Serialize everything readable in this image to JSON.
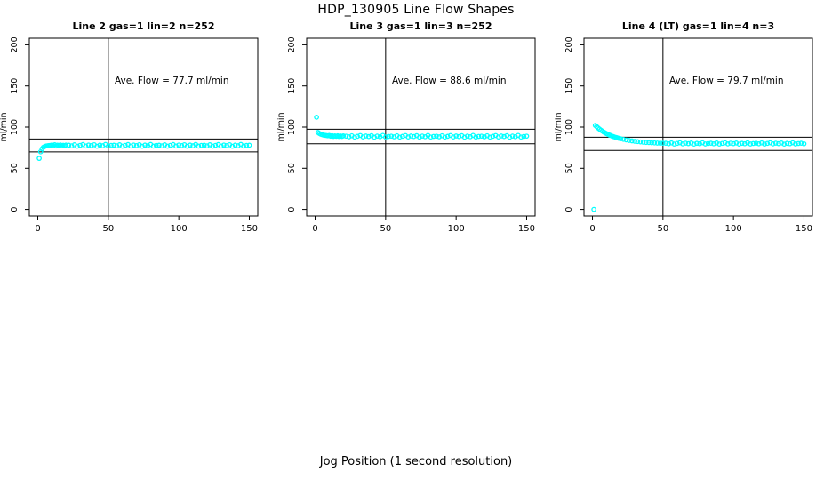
{
  "page_title": "HDP_130905  Line Flow Shapes",
  "x_axis_label": "Jog Position (1 second resolution)",
  "colors": {
    "points": "#00ffff",
    "axis": "#000000",
    "background": "#ffffff",
    "text": "#000000"
  },
  "chart_data": [
    {
      "type": "scatter",
      "title": "Line 2 gas=1 lin=2 n=252",
      "annotation": "Ave. Flow =  77.7  ml/min",
      "ave_flow_ml_min": 77.7,
      "ylabel": "ml/min",
      "xlim": [
        0,
        150
      ],
      "ylim": [
        0,
        200
      ],
      "xticks": [
        0,
        50,
        100,
        150
      ],
      "yticks": [
        0,
        50,
        100,
        150,
        200
      ],
      "vline_x": 50,
      "hlines": [
        85.5,
        69.9
      ],
      "marker": "open-circle",
      "points": [
        [
          1,
          62
        ],
        [
          2,
          70
        ],
        [
          3,
          73.5
        ],
        [
          4,
          75.5
        ],
        [
          5,
          76.5
        ],
        [
          6,
          77.1
        ],
        [
          7,
          77.4
        ],
        [
          8,
          77.6
        ],
        [
          9,
          77.7
        ],
        [
          10,
          78.2
        ],
        [
          11,
          77.3
        ],
        [
          12,
          78.5
        ],
        [
          13,
          77.0
        ],
        [
          14,
          78.0
        ],
        [
          15,
          77.4
        ],
        [
          16,
          78.3
        ],
        [
          17,
          77.1
        ],
        [
          18,
          77.9
        ],
        [
          19,
          77.5
        ],
        [
          20,
          78.1
        ],
        [
          22,
          78.0
        ],
        [
          24,
          77.2
        ],
        [
          26,
          78.5
        ],
        [
          28,
          76.8
        ],
        [
          30,
          77.8
        ],
        [
          32,
          78.8
        ],
        [
          34,
          77.0
        ],
        [
          36,
          78.2
        ],
        [
          38,
          77.5
        ],
        [
          40,
          78.6
        ],
        [
          42,
          76.7
        ],
        [
          44,
          78.1
        ],
        [
          46,
          77.3
        ],
        [
          48,
          78.9
        ],
        [
          50,
          76.9
        ],
        [
          52,
          77.7
        ],
        [
          54,
          78.0
        ],
        [
          56,
          77.2
        ],
        [
          58,
          78.5
        ],
        [
          60,
          76.8
        ],
        [
          62,
          77.8
        ],
        [
          64,
          78.8
        ],
        [
          66,
          77.0
        ],
        [
          68,
          78.2
        ],
        [
          70,
          77.5
        ],
        [
          72,
          78.6
        ],
        [
          74,
          76.7
        ],
        [
          76,
          78.1
        ],
        [
          78,
          77.3
        ],
        [
          80,
          78.9
        ],
        [
          82,
          76.9
        ],
        [
          84,
          77.7
        ],
        [
          86,
          78.0
        ],
        [
          88,
          77.2
        ],
        [
          90,
          78.5
        ],
        [
          92,
          76.8
        ],
        [
          94,
          77.8
        ],
        [
          96,
          78.8
        ],
        [
          98,
          77.0
        ],
        [
          100,
          78.2
        ],
        [
          102,
          77.5
        ],
        [
          104,
          78.6
        ],
        [
          106,
          76.7
        ],
        [
          108,
          78.1
        ],
        [
          110,
          77.3
        ],
        [
          112,
          78.9
        ],
        [
          114,
          76.9
        ],
        [
          116,
          77.7
        ],
        [
          118,
          78.0
        ],
        [
          120,
          77.2
        ],
        [
          122,
          78.5
        ],
        [
          124,
          76.8
        ],
        [
          126,
          77.8
        ],
        [
          128,
          78.8
        ],
        [
          130,
          77.0
        ],
        [
          132,
          78.2
        ],
        [
          134,
          77.5
        ],
        [
          136,
          78.6
        ],
        [
          138,
          76.7
        ],
        [
          140,
          78.1
        ],
        [
          142,
          77.3
        ],
        [
          144,
          78.9
        ],
        [
          146,
          76.9
        ],
        [
          148,
          77.7
        ],
        [
          150,
          78.0
        ]
      ]
    },
    {
      "type": "scatter",
      "title": "Line 3 gas=1 lin=3 n=252",
      "annotation": "Ave. Flow =  88.6  ml/min",
      "ave_flow_ml_min": 88.6,
      "ylabel": "ml/min",
      "xlim": [
        0,
        150
      ],
      "ylim": [
        0,
        200
      ],
      "xticks": [
        0,
        50,
        100,
        150
      ],
      "yticks": [
        0,
        50,
        100,
        150,
        200
      ],
      "vline_x": 50,
      "hlines": [
        97.5,
        79.7
      ],
      "marker": "open-circle",
      "points": [
        [
          1,
          112
        ],
        [
          2,
          93.5
        ],
        [
          3,
          92.3
        ],
        [
          4,
          91.4
        ],
        [
          5,
          90.8
        ],
        [
          6,
          90.3
        ],
        [
          7,
          90.0
        ],
        [
          8,
          89.7
        ],
        [
          9,
          89.5
        ],
        [
          10,
          89.9
        ],
        [
          11,
          88.9
        ],
        [
          12,
          89.6
        ],
        [
          13,
          88.7
        ],
        [
          14,
          89.4
        ],
        [
          15,
          88.8
        ],
        [
          16,
          89.5
        ],
        [
          17,
          88.6
        ],
        [
          18,
          89.2
        ],
        [
          19,
          88.7
        ],
        [
          20,
          89.3
        ],
        [
          22,
          89.0
        ],
        [
          24,
          88.2
        ],
        [
          26,
          89.5
        ],
        [
          28,
          87.8
        ],
        [
          30,
          88.8
        ],
        [
          32,
          89.8
        ],
        [
          34,
          88.0
        ],
        [
          36,
          89.2
        ],
        [
          38,
          88.5
        ],
        [
          40,
          89.6
        ],
        [
          42,
          87.7
        ],
        [
          44,
          89.1
        ],
        [
          46,
          88.3
        ],
        [
          48,
          89.9
        ],
        [
          50,
          87.9
        ],
        [
          52,
          88.7
        ],
        [
          54,
          89.0
        ],
        [
          56,
          88.2
        ],
        [
          58,
          89.5
        ],
        [
          60,
          87.8
        ],
        [
          62,
          88.8
        ],
        [
          64,
          89.8
        ],
        [
          66,
          88.0
        ],
        [
          68,
          89.2
        ],
        [
          70,
          88.5
        ],
        [
          72,
          89.6
        ],
        [
          74,
          87.7
        ],
        [
          76,
          89.1
        ],
        [
          78,
          88.3
        ],
        [
          80,
          89.9
        ],
        [
          82,
          87.9
        ],
        [
          84,
          88.7
        ],
        [
          86,
          89.0
        ],
        [
          88,
          88.2
        ],
        [
          90,
          89.5
        ],
        [
          92,
          87.8
        ],
        [
          94,
          88.8
        ],
        [
          96,
          89.8
        ],
        [
          98,
          88.0
        ],
        [
          100,
          89.2
        ],
        [
          102,
          88.5
        ],
        [
          104,
          89.6
        ],
        [
          106,
          87.7
        ],
        [
          108,
          89.1
        ],
        [
          110,
          88.3
        ],
        [
          112,
          89.9
        ],
        [
          114,
          87.9
        ],
        [
          116,
          88.7
        ],
        [
          118,
          89.0
        ],
        [
          120,
          88.2
        ],
        [
          122,
          89.5
        ],
        [
          124,
          87.8
        ],
        [
          126,
          88.8
        ],
        [
          128,
          89.8
        ],
        [
          130,
          88.0
        ],
        [
          132,
          89.2
        ],
        [
          134,
          88.5
        ],
        [
          136,
          89.6
        ],
        [
          138,
          87.7
        ],
        [
          140,
          89.1
        ],
        [
          142,
          88.3
        ],
        [
          144,
          89.9
        ],
        [
          146,
          87.9
        ],
        [
          148,
          88.7
        ],
        [
          150,
          89.0
        ]
      ]
    },
    {
      "type": "scatter",
      "title": "Line 4 (LT) gas=1 lin=4 n=3",
      "annotation": "Ave. Flow =  79.7  ml/min",
      "ave_flow_ml_min": 79.7,
      "ylabel": "ml/min",
      "xlim": [
        0,
        150
      ],
      "ylim": [
        0,
        200
      ],
      "xticks": [
        0,
        50,
        100,
        150
      ],
      "yticks": [
        0,
        50,
        100,
        150,
        200
      ],
      "vline_x": 50,
      "hlines": [
        87.7,
        71.7
      ],
      "marker": "open-circle",
      "points": [
        [
          1,
          0
        ],
        [
          2,
          102
        ],
        [
          3,
          100.5
        ],
        [
          4,
          99
        ],
        [
          5,
          97.6
        ],
        [
          6,
          96.3
        ],
        [
          7,
          95.1
        ],
        [
          8,
          94
        ],
        [
          9,
          93
        ],
        [
          10,
          92.1
        ],
        [
          11,
          91.2
        ],
        [
          12,
          90.4
        ],
        [
          13,
          89.7
        ],
        [
          14,
          89
        ],
        [
          15,
          88.4
        ],
        [
          16,
          87.8
        ],
        [
          17,
          87.3
        ],
        [
          18,
          86.8
        ],
        [
          19,
          86.3
        ],
        [
          20,
          85.9
        ],
        [
          22,
          85.1
        ],
        [
          24,
          84.4
        ],
        [
          26,
          83.8
        ],
        [
          28,
          83.3
        ],
        [
          30,
          82.8
        ],
        [
          32,
          82.4
        ],
        [
          34,
          82.0
        ],
        [
          36,
          81.7
        ],
        [
          38,
          81.4
        ],
        [
          40,
          81.2
        ],
        [
          42,
          81.0
        ],
        [
          44,
          80.8
        ],
        [
          46,
          80.6
        ],
        [
          48,
          80.5
        ],
        [
          50,
          80.4
        ],
        [
          52,
          80.4
        ],
        [
          54,
          79.7
        ],
        [
          56,
          80.8
        ],
        [
          58,
          79.4
        ],
        [
          60,
          80.2
        ],
        [
          62,
          81.0
        ],
        [
          64,
          79.6
        ],
        [
          66,
          80.5
        ],
        [
          68,
          79.9
        ],
        [
          70,
          80.7
        ],
        [
          72,
          79.3
        ],
        [
          74,
          80.3
        ],
        [
          76,
          79.8
        ],
        [
          78,
          81.0
        ],
        [
          80,
          79.5
        ],
        [
          82,
          80.1
        ],
        [
          84,
          80.4
        ],
        [
          86,
          79.7
        ],
        [
          88,
          80.8
        ],
        [
          90,
          79.4
        ],
        [
          92,
          80.2
        ],
        [
          94,
          81.0
        ],
        [
          96,
          79.6
        ],
        [
          98,
          80.5
        ],
        [
          100,
          79.9
        ],
        [
          102,
          80.7
        ],
        [
          104,
          79.3
        ],
        [
          106,
          80.3
        ],
        [
          108,
          79.8
        ],
        [
          110,
          81.0
        ],
        [
          112,
          79.5
        ],
        [
          114,
          80.1
        ],
        [
          116,
          80.4
        ],
        [
          118,
          79.7
        ],
        [
          120,
          80.8
        ],
        [
          122,
          79.4
        ],
        [
          124,
          80.2
        ],
        [
          126,
          81.0
        ],
        [
          128,
          79.6
        ],
        [
          130,
          80.5
        ],
        [
          132,
          79.9
        ],
        [
          134,
          80.7
        ],
        [
          136,
          79.3
        ],
        [
          138,
          80.3
        ],
        [
          140,
          79.8
        ],
        [
          142,
          81.0
        ],
        [
          144,
          79.5
        ],
        [
          146,
          80.1
        ],
        [
          148,
          80.4
        ],
        [
          150,
          79.7
        ]
      ]
    }
  ]
}
